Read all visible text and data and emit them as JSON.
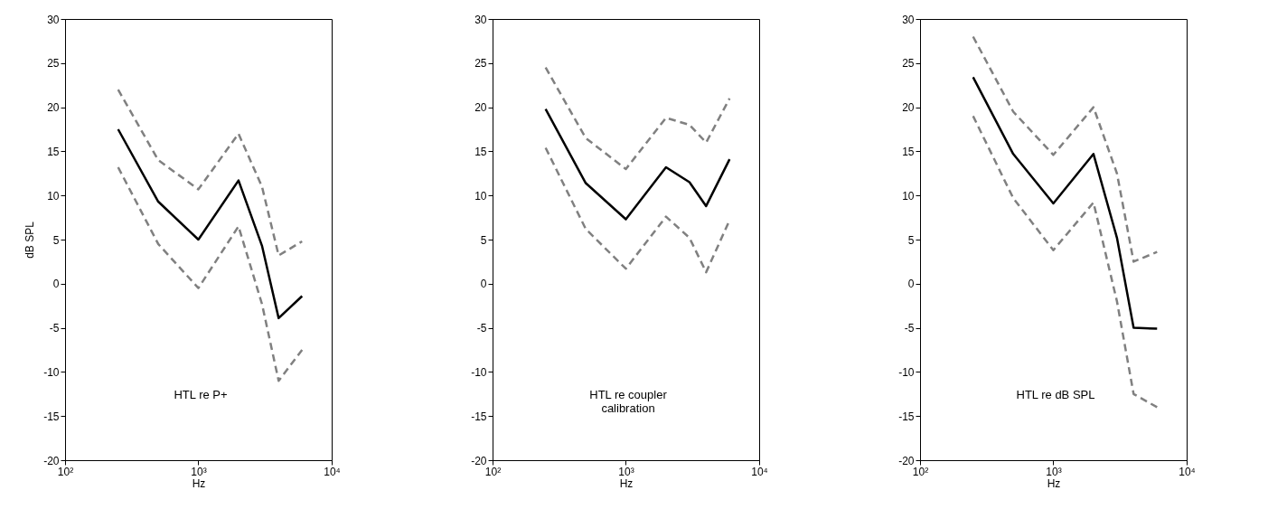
{
  "chart_data": [
    {
      "type": "line",
      "x": [
        250,
        500,
        1000,
        2000,
        3000,
        4000,
        6000
      ],
      "xlabel": "Hz",
      "ylabel": "dB SPL",
      "log": "x",
      "grid": false,
      "xlim": [
        100,
        10000
      ],
      "xticks": [
        {
          "value": 100,
          "label": "10²"
        },
        {
          "value": 1000,
          "label": "10³"
        },
        {
          "value": 10000,
          "label": "10⁴"
        }
      ],
      "ylim": [
        -20,
        30
      ],
      "yticks": [
        -20,
        -15,
        -10,
        -5,
        0,
        5,
        10,
        15,
        20,
        25,
        30
      ],
      "annotations": [
        "HTL re P+"
      ],
      "series": [
        {
          "color": "#808080",
          "line_style": "dashed",
          "values": [
            22,
            14,
            10.7,
            17,
            11,
            3.2,
            4.8
          ]
        },
        {
          "color": "#808080",
          "line_style": "dashed",
          "values": [
            13.2,
            4.5,
            -0.5,
            6.5,
            -2.3,
            -11,
            -7.5
          ]
        },
        {
          "color": "#000000",
          "line_style": "solid",
          "values": [
            17.5,
            9.3,
            5,
            11.7,
            4.3,
            -3.9,
            -1.4
          ]
        }
      ]
    },
    {
      "type": "line",
      "x": [
        250,
        500,
        1000,
        2000,
        3000,
        4000,
        6000
      ],
      "xlabel": "Hz",
      "log": "x",
      "grid": false,
      "xlim": [
        100,
        10000
      ],
      "xticks": [
        {
          "value": 100,
          "label": "10²"
        },
        {
          "value": 1000,
          "label": "10³"
        },
        {
          "value": 10000,
          "label": "10⁴"
        }
      ],
      "ylim": [
        -20,
        30
      ],
      "yticks": [
        -20,
        -15,
        -10,
        -5,
        0,
        5,
        10,
        15,
        20,
        25,
        30
      ],
      "annotations": [
        "HTL re coupler\ncalibration"
      ],
      "series": [
        {
          "color": "#808080",
          "line_style": "dashed",
          "values": [
            24.5,
            16.5,
            13,
            18.8,
            18,
            16,
            21
          ]
        },
        {
          "color": "#808080",
          "line_style": "dashed",
          "values": [
            15.4,
            6.2,
            1.7,
            7.6,
            5.2,
            1.3,
            7.2
          ]
        },
        {
          "color": "#000000",
          "line_style": "solid",
          "values": [
            19.8,
            11.4,
            7.3,
            13.2,
            11.5,
            8.8,
            14.1
          ]
        }
      ]
    },
    {
      "type": "line",
      "x": [
        250,
        500,
        1000,
        2000,
        3000,
        4000,
        6000
      ],
      "xlabel": "Hz",
      "log": "x",
      "grid": false,
      "xlim": [
        100,
        10000
      ],
      "xticks": [
        {
          "value": 100,
          "label": "10²"
        },
        {
          "value": 1000,
          "label": "10³"
        },
        {
          "value": 10000,
          "label": "10⁴"
        }
      ],
      "ylim": [
        -20,
        30
      ],
      "yticks": [
        -20,
        -15,
        -10,
        -5,
        0,
        5,
        10,
        15,
        20,
        25,
        30
      ],
      "annotations": [
        "HTL re dB SPL"
      ],
      "series": [
        {
          "color": "#808080",
          "line_style": "dashed",
          "values": [
            28,
            19.5,
            14.6,
            20,
            12.5,
            2.5,
            3.6
          ]
        },
        {
          "color": "#808080",
          "line_style": "dashed",
          "values": [
            19,
            9.7,
            3.8,
            9.2,
            -2,
            -12.5,
            -14
          ]
        },
        {
          "color": "#000000",
          "line_style": "solid",
          "values": [
            23.4,
            14.7,
            9.1,
            14.7,
            5.2,
            -5,
            -5.1
          ]
        }
      ]
    }
  ]
}
